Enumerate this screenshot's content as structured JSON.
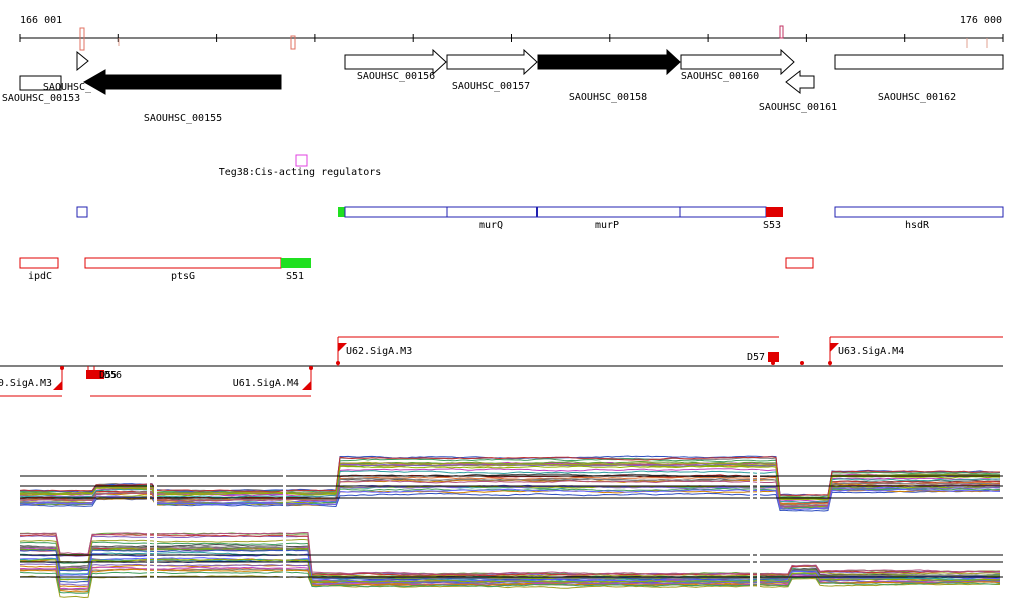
{
  "ruler": {
    "start_label": "166 001",
    "end_label": "176 000"
  },
  "genes": [
    {
      "label": "SAOUHSC_00153",
      "strand": "none",
      "filled": false
    },
    {
      "label": "SAOUHSC_",
      "strand": "plus",
      "filled": false
    },
    {
      "label": "SAOUHSC_00155",
      "strand": "minus",
      "filled": true
    },
    {
      "label": "SAOUHSC_00156",
      "strand": "plus",
      "filled": false
    },
    {
      "label": "SAOUHSC_00157",
      "strand": "plus",
      "filled": false
    },
    {
      "label": "SAOUHSC_00158",
      "strand": "plus",
      "filled": true
    },
    {
      "label": "SAOUHSC_00160",
      "strand": "plus",
      "filled": false
    },
    {
      "label": "SAOUHSC_00161",
      "strand": "minus",
      "filled": false
    },
    {
      "label": "SAOUHSC_00162",
      "strand": "none",
      "filled": false
    }
  ],
  "regulator": {
    "label": "Teg38:Cis-acting regulators"
  },
  "blue_track": {
    "labels": [
      "murQ",
      "murP",
      "S53",
      "hsdR"
    ]
  },
  "red_track": {
    "labels": [
      "ipdC",
      "ptsG",
      "S51"
    ]
  },
  "promoters": {
    "forward": [
      "U62.SigA.M3",
      "U63.SigA.M4"
    ],
    "reverse": [
      "0.SigA.M3",
      "U61.SigA.M4"
    ],
    "terminators": [
      "D57",
      "D55",
      "D56"
    ]
  },
  "colors": {
    "gene_fill": "#000000",
    "ruler_mark": "#e07060",
    "regulator": "#e040e0",
    "blue_track": "#2020b0",
    "red_track": "#e00000",
    "segment_green": "#20e020",
    "promoter": "#e00000"
  },
  "expression": {
    "palette": [
      "#4d4d4d",
      "#e07030",
      "#60a030",
      "#3050c0",
      "#c040c0",
      "#a0a020",
      "#30a0a0",
      "#c03030",
      "#8060c0",
      "#d08000",
      "#808080",
      "#40a060",
      "#b05080",
      "#6060ff",
      "#90b000"
    ]
  }
}
